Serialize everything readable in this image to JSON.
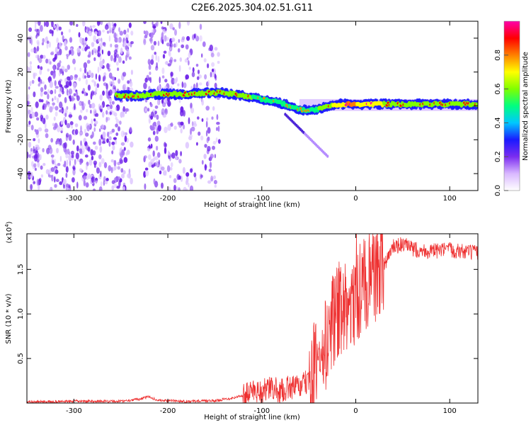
{
  "title": "C2E6.2025.304.02.51.G11",
  "chart_data": [
    {
      "type": "heatmap",
      "name": "spectrogram",
      "xlabel": "Height of straight line (km)",
      "ylabel": "Frequency (Hz)",
      "xlim": [
        -350,
        130
      ],
      "ylim": [
        -50,
        50
      ],
      "xticks": [
        -300,
        -200,
        -100,
        0,
        100
      ],
      "xtick_labels": [
        "-300",
        "-200",
        "-100",
        "0",
        "100"
      ],
      "yticks": [
        -40,
        -20,
        0,
        20,
        40
      ],
      "ytick_labels": [
        "-40",
        "-20",
        "0",
        "20",
        "40"
      ],
      "colorbar": {
        "label": "Normalized spectral amplitude",
        "range": [
          0,
          1
        ],
        "ticks": [
          0.0,
          0.2,
          0.4,
          0.6,
          0.8
        ],
        "tick_labels": [
          "0.0",
          "0.2",
          "0.4",
          "0.6",
          "0.8"
        ],
        "colors": [
          "#ffffff",
          "#d9b8ff",
          "#7b2cf0",
          "#1a1aff",
          "#00c8ff",
          "#00ff80",
          "#80ff00",
          "#ffff00",
          "#ff8000",
          "#ff0000",
          "#ff00aa"
        ]
      },
      "signal_track": {
        "height_km": [
          -255,
          -230,
          -210,
          -180,
          -150,
          -130,
          -110,
          -90,
          -75,
          -60,
          -50,
          -40,
          -30,
          -20,
          -10,
          0,
          20,
          40,
          80,
          130
        ],
        "frequency_hz": [
          6,
          6,
          7,
          7,
          8,
          7,
          5,
          3,
          1,
          -2,
          -3,
          -2,
          0,
          1,
          1,
          1,
          1,
          1,
          1,
          1
        ],
        "amplitude": [
          0.6,
          0.65,
          0.6,
          0.6,
          0.6,
          0.55,
          0.55,
          0.5,
          0.45,
          0.5,
          0.5,
          0.55,
          0.6,
          0.7,
          0.75,
          0.75,
          0.7,
          0.6,
          0.6,
          0.6
        ]
      },
      "noise_region_km": [
        -350,
        -145
      ]
    },
    {
      "type": "line",
      "name": "snr",
      "xlabel": "Height of straight line (km)",
      "ylabel": "SNR (10 * v/v)",
      "scale_label": "(x10",
      "scale_exponent": "4",
      "scale_suffix": ")",
      "xlim": [
        -350,
        130
      ],
      "ylim": [
        0,
        19000
      ],
      "xticks": [
        -300,
        -200,
        -100,
        0,
        100
      ],
      "xtick_labels": [
        "-300",
        "-200",
        "-100",
        "0",
        "100"
      ],
      "yticks": [
        5000,
        10000,
        15000
      ],
      "ytick_labels": [
        "0.5",
        "1.0",
        "1.5"
      ],
      "color": "#ee3030",
      "series": [
        {
          "name": "SNR",
          "x": [
            -350,
            -300,
            -250,
            -230,
            -220,
            -210,
            -180,
            -150,
            -130,
            -115,
            -110,
            -100,
            -90,
            -80,
            -70,
            -60,
            -50,
            -40,
            -35,
            -30,
            -25,
            -20,
            -15,
            -10,
            -5,
            0,
            10,
            20,
            30,
            40,
            50,
            60,
            80,
            100,
            130
          ],
          "y": [
            100,
            200,
            200,
            450,
            700,
            300,
            200,
            250,
            600,
            1000,
            1500,
            1300,
            1700,
            1300,
            1800,
            1800,
            2500,
            4500,
            6000,
            7000,
            9000,
            10500,
            11000,
            10000,
            11000,
            12000,
            13500,
            14000,
            15500,
            17500,
            17800,
            17300,
            17000,
            17200,
            16800
          ]
        }
      ]
    }
  ]
}
